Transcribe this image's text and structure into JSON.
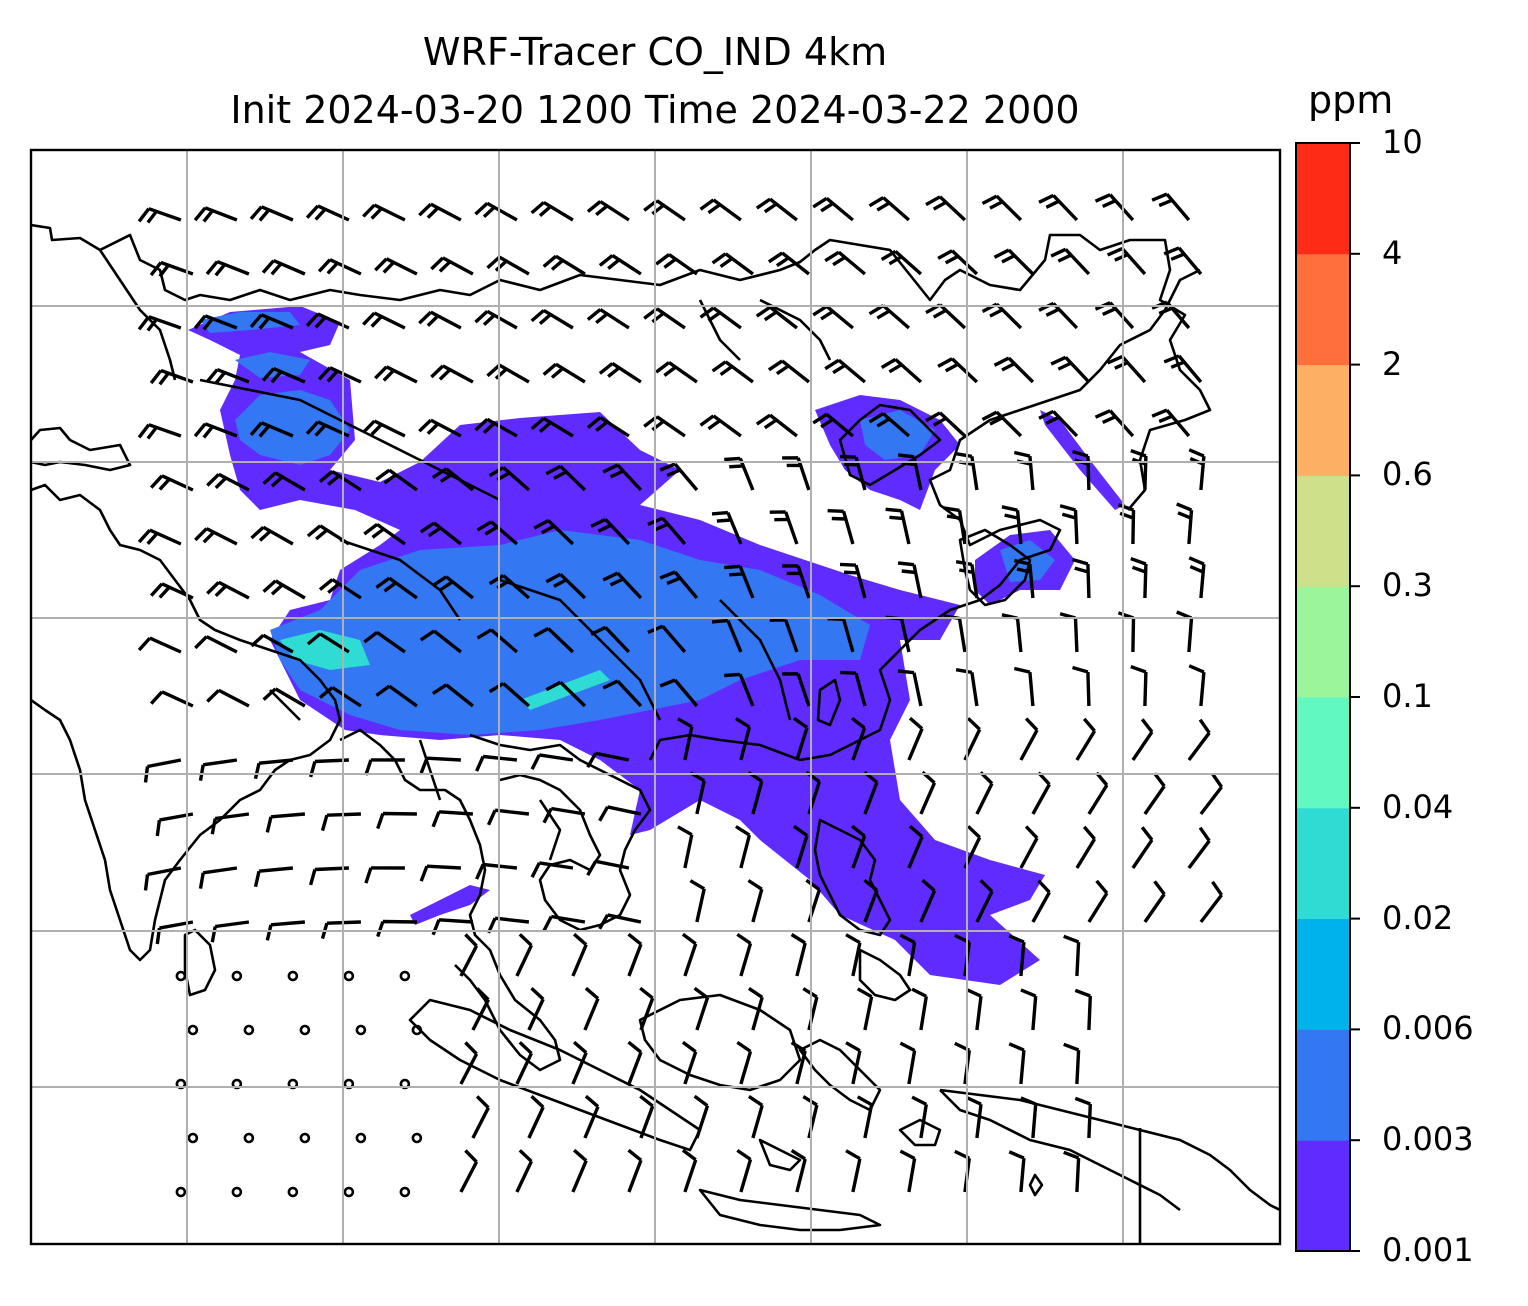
{
  "title": {
    "line1": "WRF-Tracer CO_IND 4km",
    "line2": "Init 2024-03-20 1200 Time 2024-03-22 2000"
  },
  "colorbar": {
    "unit": "ppm",
    "levels": [
      "0.001",
      "0.003",
      "0.006",
      "0.02",
      "0.04",
      "0.1",
      "0.3",
      "0.6",
      "2",
      "4",
      "10"
    ],
    "colors": [
      "#5f2bff",
      "#3477f2",
      "#00b2ea",
      "#2fdcd4",
      "#62f8c1",
      "#9af59b",
      "#cfe08a",
      "#fdb063",
      "#ff6f3c",
      "#fe2b17"
    ]
  },
  "map": {
    "gridlines": "on",
    "grid_color": "#b0b0b0",
    "coastline_color": "#000000",
    "features": [
      "coastlines",
      "country-borders",
      "tracer-plume",
      "wind-barbs"
    ]
  }
}
